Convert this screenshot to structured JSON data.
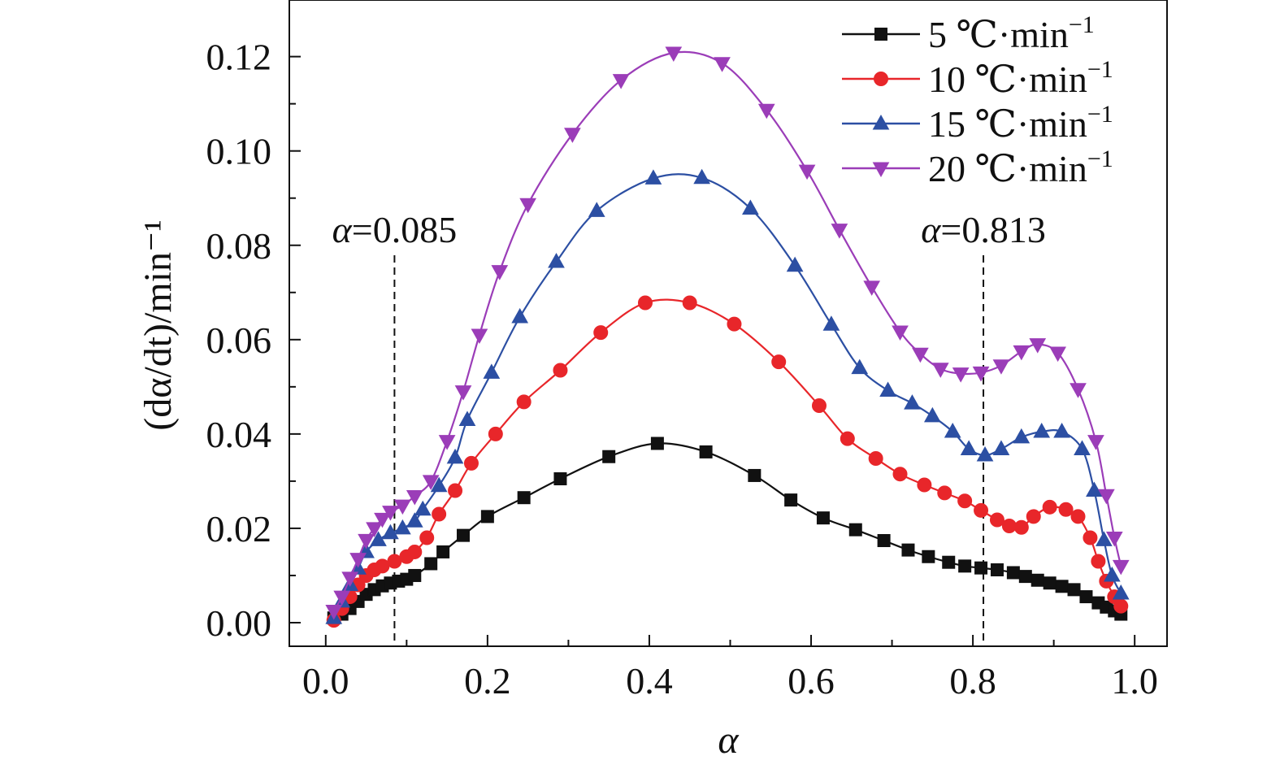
{
  "chart_data": {
    "type": "line",
    "xlabel": "α",
    "ylabel": "(dα/dt)/min⁻¹",
    "xlim": [
      -0.045,
      1.04
    ],
    "ylim": [
      -0.005,
      0.132
    ],
    "x_ticks": [
      "0.0",
      "0.2",
      "0.4",
      "0.6",
      "0.8",
      "1.0"
    ],
    "y_ticks": [
      "0.00",
      "0.02",
      "0.04",
      "0.06",
      "0.08",
      "0.10",
      "0.12"
    ],
    "grid": false,
    "legend_position": "top-right",
    "annotations": [
      {
        "prefix": "α",
        "text": "=0.085",
        "x": 0.085
      },
      {
        "prefix": "α",
        "text": "=0.813",
        "x": 0.813
      }
    ],
    "series": [
      {
        "name": "5 ℃·min⁻¹",
        "label_main": "5 ℃·min",
        "label_sup": "−1",
        "color": "#111111",
        "marker": "square",
        "points": [
          [
            0.01,
            0.001
          ],
          [
            0.02,
            0.0018
          ],
          [
            0.03,
            0.003
          ],
          [
            0.04,
            0.0045
          ],
          [
            0.05,
            0.006
          ],
          [
            0.06,
            0.007
          ],
          [
            0.07,
            0.0078
          ],
          [
            0.08,
            0.0084
          ],
          [
            0.09,
            0.0088
          ],
          [
            0.1,
            0.0092
          ],
          [
            0.11,
            0.01
          ],
          [
            0.13,
            0.0125
          ],
          [
            0.145,
            0.015
          ],
          [
            0.17,
            0.0185
          ],
          [
            0.2,
            0.0225
          ],
          [
            0.245,
            0.0265
          ],
          [
            0.29,
            0.0305
          ],
          [
            0.35,
            0.0352
          ],
          [
            0.41,
            0.038
          ],
          [
            0.47,
            0.0362
          ],
          [
            0.53,
            0.0312
          ],
          [
            0.575,
            0.026
          ],
          [
            0.615,
            0.0222
          ],
          [
            0.655,
            0.0197
          ],
          [
            0.69,
            0.0174
          ],
          [
            0.72,
            0.0154
          ],
          [
            0.745,
            0.014
          ],
          [
            0.77,
            0.0128
          ],
          [
            0.79,
            0.012
          ],
          [
            0.81,
            0.0116
          ],
          [
            0.83,
            0.0112
          ],
          [
            0.85,
            0.0106
          ],
          [
            0.865,
            0.0098
          ],
          [
            0.88,
            0.009
          ],
          [
            0.895,
            0.0084
          ],
          [
            0.91,
            0.0077
          ],
          [
            0.925,
            0.007
          ],
          [
            0.94,
            0.0055
          ],
          [
            0.955,
            0.0042
          ],
          [
            0.965,
            0.0033
          ],
          [
            0.975,
            0.0025
          ],
          [
            0.983,
            0.0018
          ]
        ]
      },
      {
        "name": "10 ℃·min⁻¹",
        "label_main": "10 ℃·min",
        "label_sup": "−1",
        "color": "#e8262a",
        "marker": "circle",
        "points": [
          [
            0.01,
            0.0005
          ],
          [
            0.02,
            0.003
          ],
          [
            0.03,
            0.0055
          ],
          [
            0.04,
            0.008
          ],
          [
            0.05,
            0.01
          ],
          [
            0.06,
            0.0112
          ],
          [
            0.07,
            0.012
          ],
          [
            0.085,
            0.013
          ],
          [
            0.1,
            0.014
          ],
          [
            0.11,
            0.015
          ],
          [
            0.125,
            0.018
          ],
          [
            0.14,
            0.023
          ],
          [
            0.16,
            0.028
          ],
          [
            0.18,
            0.0338
          ],
          [
            0.21,
            0.04
          ],
          [
            0.245,
            0.0468
          ],
          [
            0.29,
            0.0535
          ],
          [
            0.34,
            0.0615
          ],
          [
            0.395,
            0.0678
          ],
          [
            0.45,
            0.0678
          ],
          [
            0.505,
            0.0633
          ],
          [
            0.56,
            0.0553
          ],
          [
            0.61,
            0.046
          ],
          [
            0.645,
            0.039
          ],
          [
            0.68,
            0.0348
          ],
          [
            0.71,
            0.0315
          ],
          [
            0.74,
            0.0292
          ],
          [
            0.765,
            0.0275
          ],
          [
            0.79,
            0.0258
          ],
          [
            0.81,
            0.0238
          ],
          [
            0.83,
            0.0218
          ],
          [
            0.845,
            0.0205
          ],
          [
            0.86,
            0.0202
          ],
          [
            0.875,
            0.0225
          ],
          [
            0.895,
            0.0245
          ],
          [
            0.915,
            0.024
          ],
          [
            0.93,
            0.0225
          ],
          [
            0.945,
            0.018
          ],
          [
            0.955,
            0.013
          ],
          [
            0.965,
            0.0088
          ],
          [
            0.975,
            0.0055
          ],
          [
            0.983,
            0.0035
          ]
        ]
      },
      {
        "name": "15 ℃·min⁻¹",
        "label_main": "15 ℃·min",
        "label_sup": "−1",
        "color": "#2c4fa3",
        "marker": "triangle-up",
        "points": [
          [
            0.01,
            0.001
          ],
          [
            0.02,
            0.0045
          ],
          [
            0.03,
            0.008
          ],
          [
            0.04,
            0.0115
          ],
          [
            0.05,
            0.015
          ],
          [
            0.065,
            0.0175
          ],
          [
            0.08,
            0.019
          ],
          [
            0.095,
            0.02
          ],
          [
            0.11,
            0.0215
          ],
          [
            0.12,
            0.024
          ],
          [
            0.14,
            0.029
          ],
          [
            0.16,
            0.035
          ],
          [
            0.175,
            0.043
          ],
          [
            0.205,
            0.053
          ],
          [
            0.24,
            0.0648
          ],
          [
            0.285,
            0.0765
          ],
          [
            0.335,
            0.0873
          ],
          [
            0.405,
            0.0942
          ],
          [
            0.465,
            0.0943
          ],
          [
            0.525,
            0.0878
          ],
          [
            0.58,
            0.0757
          ],
          [
            0.625,
            0.0632
          ],
          [
            0.66,
            0.054
          ],
          [
            0.695,
            0.0492
          ],
          [
            0.725,
            0.0465
          ],
          [
            0.75,
            0.0438
          ],
          [
            0.775,
            0.0405
          ],
          [
            0.795,
            0.0368
          ],
          [
            0.815,
            0.0355
          ],
          [
            0.835,
            0.0368
          ],
          [
            0.86,
            0.0393
          ],
          [
            0.885,
            0.0405
          ],
          [
            0.91,
            0.0405
          ],
          [
            0.935,
            0.0368
          ],
          [
            0.95,
            0.028
          ],
          [
            0.962,
            0.0175
          ],
          [
            0.972,
            0.01
          ],
          [
            0.983,
            0.0062
          ]
        ]
      },
      {
        "name": "20 ℃·min⁻¹",
        "label_main": "20 ℃·min",
        "label_sup": "−1",
        "color": "#9b3db8",
        "marker": "triangle-down",
        "points": [
          [
            0.01,
            0.0025
          ],
          [
            0.02,
            0.0055
          ],
          [
            0.03,
            0.0095
          ],
          [
            0.04,
            0.0135
          ],
          [
            0.05,
            0.0175
          ],
          [
            0.06,
            0.02
          ],
          [
            0.07,
            0.022
          ],
          [
            0.08,
            0.0235
          ],
          [
            0.095,
            0.0248
          ],
          [
            0.11,
            0.0268
          ],
          [
            0.13,
            0.03
          ],
          [
            0.15,
            0.0385
          ],
          [
            0.17,
            0.049
          ],
          [
            0.19,
            0.061
          ],
          [
            0.215,
            0.0745
          ],
          [
            0.25,
            0.0887
          ],
          [
            0.305,
            0.1036
          ],
          [
            0.365,
            0.115
          ],
          [
            0.43,
            0.1208
          ],
          [
            0.49,
            0.1186
          ],
          [
            0.545,
            0.1087
          ],
          [
            0.595,
            0.0958
          ],
          [
            0.635,
            0.0833
          ],
          [
            0.675,
            0.0712
          ],
          [
            0.71,
            0.0617
          ],
          [
            0.735,
            0.057
          ],
          [
            0.76,
            0.0538
          ],
          [
            0.785,
            0.0528
          ],
          [
            0.81,
            0.053
          ],
          [
            0.835,
            0.0545
          ],
          [
            0.86,
            0.0575
          ],
          [
            0.88,
            0.059
          ],
          [
            0.905,
            0.0572
          ],
          [
            0.93,
            0.0495
          ],
          [
            0.952,
            0.0385
          ],
          [
            0.965,
            0.027
          ],
          [
            0.975,
            0.018
          ],
          [
            0.983,
            0.012
          ]
        ]
      }
    ]
  }
}
